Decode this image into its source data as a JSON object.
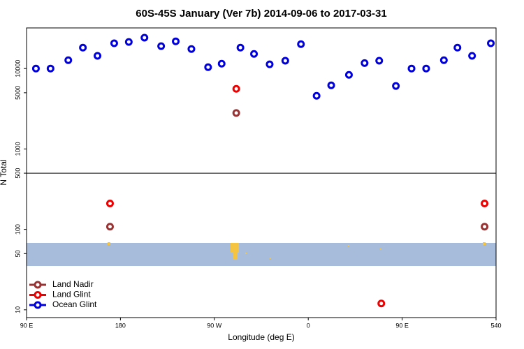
{
  "chart_data": {
    "type": "scatter",
    "title": "60S-45S January (Ver 7b)   2014-09-06 to 2017-03-31",
    "x_label": "Longitude (deg E)",
    "y_label": "N Total",
    "log_y": true,
    "legend": "lower left",
    "xlim": [
      90,
      540
    ],
    "xticks": [
      {
        "value": 90,
        "label": "90 E"
      },
      180,
      {
        "value": 270,
        "label": "90 W"
      },
      {
        "value": 360,
        "label": "0"
      },
      {
        "value": 450,
        "label": "90 E"
      },
      540
    ],
    "ylim": [
      8,
      32000
    ],
    "yticks": [
      10,
      50,
      100,
      500,
      1000,
      5000,
      10000
    ],
    "series": [
      {
        "name": "Land Nadir",
        "color": "#993333",
        "x": [
          291,
          170,
          529
        ],
        "values": [
          2800,
          108,
          108
        ]
      },
      {
        "name": "Land Glint",
        "color": "#ee0000",
        "x": [
          291,
          170,
          529,
          430
        ],
        "values": [
          5600,
          210,
          210,
          12
        ]
      },
      {
        "name": "Ocean Glint",
        "color": "#0000dd",
        "x": [
          99,
          113,
          130,
          144,
          158,
          174,
          188,
          203,
          219,
          233,
          248,
          264,
          277,
          295,
          308,
          323,
          338,
          353,
          368,
          382,
          399,
          414,
          428,
          444,
          459,
          473,
          490,
          503,
          517,
          535
        ],
        "values": [
          10000,
          10000,
          12700,
          18200,
          14400,
          20600,
          21400,
          24200,
          19000,
          21800,
          17500,
          10400,
          11500,
          18200,
          15200,
          11300,
          12500,
          20100,
          4580,
          6180,
          8350,
          11700,
          12500,
          6070,
          10000,
          10000,
          12700,
          18200,
          14400,
          20600
        ]
      }
    ]
  }
}
